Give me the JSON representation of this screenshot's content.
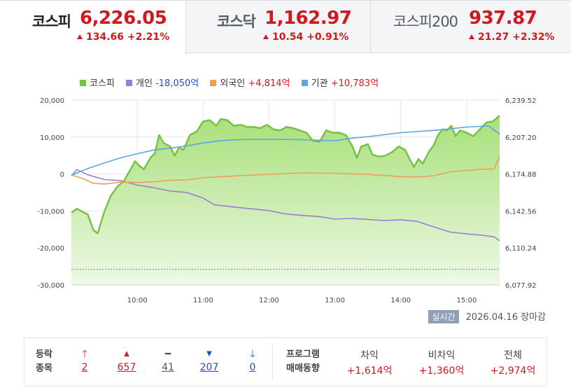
{
  "tabs": [
    {
      "name": "코스피",
      "value": "6,226.05",
      "change": "134.66 +2.21%"
    },
    {
      "name": "코스닥",
      "value": "1,162.97",
      "change": "10.54 +0.91%"
    },
    {
      "name": "코스피200",
      "value": "937.87",
      "change": "21.27 +2.32%"
    }
  ],
  "legend": [
    {
      "name": "코스피",
      "value": "",
      "color": "#7ac143"
    },
    {
      "name": "개인",
      "value": "-18,050억",
      "color": "#9a7fd1"
    },
    {
      "name": "외국인",
      "value": "+4,814억",
      "color": "#e8a15a"
    },
    {
      "name": "기관",
      "value": "+10,783억",
      "color": "#5aa5e6"
    }
  ],
  "status": {
    "badge": "실시간",
    "date": "2026.04.16",
    "state": "장마감"
  },
  "breadth": {
    "label_top": "등락",
    "label_bottom": "종목",
    "items": [
      {
        "icon": "up-limit-arrow-icon",
        "value": "2"
      },
      {
        "icon": "up-triangle-icon",
        "value": "657"
      },
      {
        "icon": "unchanged-dash-icon",
        "value": "41"
      },
      {
        "icon": "down-triangle-icon",
        "value": "207"
      },
      {
        "icon": "down-limit-arrow-icon",
        "value": "0"
      }
    ]
  },
  "program": {
    "label_top": "프로그램",
    "label_bottom": "매매동향",
    "items": [
      {
        "name": "차익",
        "value": "+1,614억"
      },
      {
        "name": "비차익",
        "value": "+1,360억"
      },
      {
        "name": "전체",
        "value": "+2,974억"
      }
    ]
  },
  "chart_data": {
    "type": "line",
    "x_ticks": [
      "10:00",
      "11:00",
      "12:00",
      "13:00",
      "14:00",
      "15:00"
    ],
    "x_range": [
      "09:00",
      "15:30"
    ],
    "y_left": {
      "ticks": [
        20000,
        10000,
        0,
        -10000,
        -20000,
        -30000
      ],
      "tick_labels": [
        "20,000",
        "10,000",
        "0",
        "-10,000",
        "-20,000",
        "-30,000"
      ],
      "range": [
        -30000,
        20000
      ]
    },
    "y_right": {
      "ticks": [
        6239.52,
        6207.2,
        6174.88,
        6142.56,
        6110.24,
        6077.92
      ],
      "tick_labels": [
        "6,239.52",
        "6,207.20",
        "6,174.88",
        "6,142.56",
        "6,110.24",
        "6,077.92"
      ],
      "range": [
        6077.92,
        6239.52
      ]
    },
    "reference_line": {
      "axis": "right",
      "value": 6091.5
    },
    "series": [
      {
        "name": "코스피",
        "axis": "right",
        "style": "area",
        "color": "#7ac143",
        "points": [
          [
            "09:00",
            6141.0
          ],
          [
            "09:05",
            6144.5
          ],
          [
            "09:10",
            6142.0
          ],
          [
            "09:15",
            6139.5
          ],
          [
            "09:20",
            6126.0
          ],
          [
            "09:24",
            6123.0
          ],
          [
            "09:30",
            6142.0
          ],
          [
            "09:36",
            6156.0
          ],
          [
            "09:42",
            6164.0
          ],
          [
            "09:48",
            6169.0
          ],
          [
            "09:54",
            6179.0
          ],
          [
            "09:58",
            6186.0
          ],
          [
            "10:02",
            6182.0
          ],
          [
            "10:06",
            6179.0
          ],
          [
            "10:12",
            6189.0
          ],
          [
            "10:16",
            6193.0
          ],
          [
            "10:20",
            6209.0
          ],
          [
            "10:24",
            6202.0
          ],
          [
            "10:30",
            6199.0
          ],
          [
            "10:34",
            6191.0
          ],
          [
            "10:38",
            6198.0
          ],
          [
            "10:42",
            6196.0
          ],
          [
            "10:48",
            6209.0
          ],
          [
            "10:54",
            6212.0
          ],
          [
            "11:00",
            6221.0
          ],
          [
            "11:06",
            6222.0
          ],
          [
            "11:12",
            6217.0
          ],
          [
            "11:16",
            6223.0
          ],
          [
            "11:22",
            6222.0
          ],
          [
            "11:28",
            6217.0
          ],
          [
            "11:34",
            6218.0
          ],
          [
            "11:40",
            6216.0
          ],
          [
            "11:46",
            6216.0
          ],
          [
            "11:52",
            6215.0
          ],
          [
            "11:58",
            6218.0
          ],
          [
            "12:04",
            6214.0
          ],
          [
            "12:10",
            6213.0
          ],
          [
            "12:16",
            6216.0
          ],
          [
            "12:22",
            6215.0
          ],
          [
            "12:28",
            6213.0
          ],
          [
            "12:34",
            6211.0
          ],
          [
            "12:40",
            6204.0
          ],
          [
            "12:46",
            6203.0
          ],
          [
            "12:52",
            6213.0
          ],
          [
            "12:58",
            6211.0
          ],
          [
            "13:04",
            6211.0
          ],
          [
            "13:10",
            6209.0
          ],
          [
            "13:16",
            6199.0
          ],
          [
            "13:20",
            6189.0
          ],
          [
            "13:24",
            6199.0
          ],
          [
            "13:30",
            6201.0
          ],
          [
            "13:34",
            6192.0
          ],
          [
            "13:40",
            6190.0
          ],
          [
            "13:46",
            6191.0
          ],
          [
            "13:52",
            6194.0
          ],
          [
            "13:58",
            6199.0
          ],
          [
            "14:04",
            6196.0
          ],
          [
            "14:08",
            6188.0
          ],
          [
            "14:12",
            6181.0
          ],
          [
            "14:16",
            6188.0
          ],
          [
            "14:20",
            6184.0
          ],
          [
            "14:26",
            6195.0
          ],
          [
            "14:30",
            6200.0
          ],
          [
            "14:34",
            6209.0
          ],
          [
            "14:38",
            6214.0
          ],
          [
            "14:42",
            6213.0
          ],
          [
            "14:46",
            6217.0
          ],
          [
            "14:50",
            6208.0
          ],
          [
            "14:54",
            6213.0
          ],
          [
            "15:00",
            6211.0
          ],
          [
            "15:06",
            6208.0
          ],
          [
            "15:12",
            6214.0
          ],
          [
            "15:18",
            6220.0
          ],
          [
            "15:24",
            6221.0
          ],
          [
            "15:30",
            6226.05
          ]
        ]
      },
      {
        "name": "개인",
        "axis": "left",
        "style": "line",
        "color": "#9a7fd1",
        "points": [
          [
            "09:00",
            -500
          ],
          [
            "09:05",
            1200
          ],
          [
            "09:15",
            -200
          ],
          [
            "09:30",
            -1500
          ],
          [
            "09:45",
            -1800
          ],
          [
            "10:00",
            -3000
          ],
          [
            "10:15",
            -3700
          ],
          [
            "10:30",
            -4600
          ],
          [
            "10:45",
            -5000
          ],
          [
            "11:00",
            -6500
          ],
          [
            "11:10",
            -8300
          ],
          [
            "11:30",
            -9000
          ],
          [
            "12:00",
            -9900
          ],
          [
            "12:15",
            -10800
          ],
          [
            "12:30",
            -11200
          ],
          [
            "12:45",
            -11500
          ],
          [
            "13:00",
            -12200
          ],
          [
            "13:15",
            -12000
          ],
          [
            "13:30",
            -12300
          ],
          [
            "13:45",
            -12600
          ],
          [
            "14:00",
            -12400
          ],
          [
            "14:15",
            -12800
          ],
          [
            "14:30",
            -14300
          ],
          [
            "14:45",
            -15700
          ],
          [
            "15:00",
            -16200
          ],
          [
            "15:15",
            -16600
          ],
          [
            "15:25",
            -17000
          ],
          [
            "15:30",
            -18050
          ]
        ]
      },
      {
        "name": "외국인",
        "axis": "left",
        "style": "line",
        "color": "#e8a15a",
        "points": [
          [
            "09:00",
            -200
          ],
          [
            "09:10",
            -1200
          ],
          [
            "09:20",
            -2500
          ],
          [
            "09:30",
            -2700
          ],
          [
            "09:45",
            -2200
          ],
          [
            "10:00",
            -2300
          ],
          [
            "10:15",
            -2100
          ],
          [
            "10:30",
            -1700
          ],
          [
            "10:45",
            -1600
          ],
          [
            "11:00",
            -1000
          ],
          [
            "11:30",
            -500
          ],
          [
            "12:00",
            -100
          ],
          [
            "12:30",
            300
          ],
          [
            "13:00",
            200
          ],
          [
            "13:30",
            -100
          ],
          [
            "14:00",
            -700
          ],
          [
            "14:15",
            -800
          ],
          [
            "14:30",
            -500
          ],
          [
            "14:45",
            600
          ],
          [
            "15:00",
            1000
          ],
          [
            "15:15",
            1300
          ],
          [
            "15:25",
            1400
          ],
          [
            "15:30",
            4814
          ]
        ]
      },
      {
        "name": "기관",
        "axis": "left",
        "style": "line",
        "color": "#5aa5e6",
        "points": [
          [
            "09:00",
            -300
          ],
          [
            "09:15",
            1500
          ],
          [
            "09:30",
            3000
          ],
          [
            "09:45",
            4400
          ],
          [
            "10:00",
            5500
          ],
          [
            "10:15",
            6500
          ],
          [
            "10:30",
            7000
          ],
          [
            "10:45",
            7600
          ],
          [
            "11:00",
            8400
          ],
          [
            "11:15",
            9000
          ],
          [
            "11:30",
            9300
          ],
          [
            "12:00",
            9400
          ],
          [
            "12:30",
            9300
          ],
          [
            "13:00",
            9000
          ],
          [
            "13:15",
            9700
          ],
          [
            "13:30",
            10100
          ],
          [
            "14:00",
            11200
          ],
          [
            "14:30",
            11800
          ],
          [
            "15:00",
            12700
          ],
          [
            "15:20",
            13000
          ],
          [
            "15:30",
            10783
          ]
        ]
      }
    ]
  }
}
